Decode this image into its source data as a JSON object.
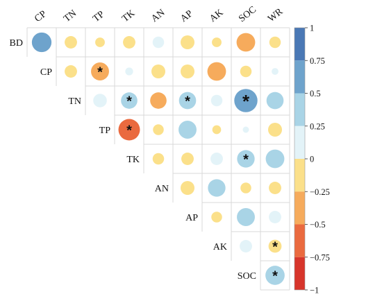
{
  "chart_data": {
    "type": "heatmap",
    "title": "",
    "col_labels": [
      "CP",
      "TN",
      "TP",
      "TK",
      "AN",
      "AP",
      "AK",
      "SOC",
      "WR"
    ],
    "row_labels": [
      "BD",
      "CP",
      "TN",
      "TP",
      "TK",
      "AN",
      "AP",
      "AK",
      "SOC"
    ],
    "cells": [
      {
        "row": "BD",
        "col": "CP",
        "r": 0.5,
        "sig": false
      },
      {
        "row": "BD",
        "col": "TN",
        "r": -0.2,
        "sig": false
      },
      {
        "row": "BD",
        "col": "TP",
        "r": -0.12,
        "sig": false
      },
      {
        "row": "BD",
        "col": "TK",
        "r": -0.2,
        "sig": false
      },
      {
        "row": "BD",
        "col": "AN",
        "r": 0.17,
        "sig": false
      },
      {
        "row": "BD",
        "col": "AP",
        "r": -0.25,
        "sig": false
      },
      {
        "row": "BD",
        "col": "AK",
        "r": -0.12,
        "sig": false
      },
      {
        "row": "BD",
        "col": "SOC",
        "r": -0.45,
        "sig": false
      },
      {
        "row": "BD",
        "col": "WR",
        "r": -0.17,
        "sig": false
      },
      {
        "row": "CP",
        "col": "TN",
        "r": -0.2,
        "sig": false
      },
      {
        "row": "CP",
        "col": "TP",
        "r": -0.42,
        "sig": true
      },
      {
        "row": "CP",
        "col": "TK",
        "r": 0.08,
        "sig": false
      },
      {
        "row": "CP",
        "col": "AN",
        "r": -0.25,
        "sig": false
      },
      {
        "row": "CP",
        "col": "AP",
        "r": -0.25,
        "sig": false
      },
      {
        "row": "CP",
        "col": "AK",
        "r": -0.45,
        "sig": false
      },
      {
        "row": "CP",
        "col": "SOC",
        "r": -0.17,
        "sig": false
      },
      {
        "row": "CP",
        "col": "WR",
        "r": 0.06,
        "sig": false
      },
      {
        "row": "TN",
        "col": "TP",
        "r": 0.24,
        "sig": false
      },
      {
        "row": "TN",
        "col": "TK",
        "r": 0.35,
        "sig": true
      },
      {
        "row": "TN",
        "col": "AN",
        "r": -0.35,
        "sig": false
      },
      {
        "row": "TN",
        "col": "AP",
        "r": 0.38,
        "sig": true
      },
      {
        "row": "TN",
        "col": "AK",
        "r": 0.17,
        "sig": false
      },
      {
        "row": "TN",
        "col": "SOC",
        "r": 0.7,
        "sig": true
      },
      {
        "row": "TN",
        "col": "WR",
        "r": 0.38,
        "sig": false
      },
      {
        "row": "TP",
        "col": "TK",
        "r": -0.6,
        "sig": true
      },
      {
        "row": "TP",
        "col": "AN",
        "r": -0.15,
        "sig": false
      },
      {
        "row": "TP",
        "col": "AP",
        "r": 0.42,
        "sig": false
      },
      {
        "row": "TP",
        "col": "AK",
        "r": -0.1,
        "sig": false
      },
      {
        "row": "TP",
        "col": "SOC",
        "r": 0.05,
        "sig": false
      },
      {
        "row": "TP",
        "col": "WR",
        "r": -0.25,
        "sig": false
      },
      {
        "row": "TK",
        "col": "AN",
        "r": -0.17,
        "sig": false
      },
      {
        "row": "TK",
        "col": "AP",
        "r": -0.2,
        "sig": false
      },
      {
        "row": "TK",
        "col": "AK",
        "r": 0.2,
        "sig": false
      },
      {
        "row": "TK",
        "col": "SOC",
        "r": 0.4,
        "sig": true
      },
      {
        "row": "TK",
        "col": "WR",
        "r": 0.45,
        "sig": false
      },
      {
        "row": "AN",
        "col": "AP",
        "r": -0.25,
        "sig": false
      },
      {
        "row": "AN",
        "col": "AK",
        "r": 0.4,
        "sig": false
      },
      {
        "row": "AN",
        "col": "SOC",
        "r": -0.15,
        "sig": false
      },
      {
        "row": "AN",
        "col": "WR",
        "r": -0.2,
        "sig": false
      },
      {
        "row": "AP",
        "col": "AK",
        "r": -0.15,
        "sig": false
      },
      {
        "row": "AP",
        "col": "SOC",
        "r": 0.42,
        "sig": false
      },
      {
        "row": "AP",
        "col": "WR",
        "r": 0.2,
        "sig": false
      },
      {
        "row": "AK",
        "col": "SOC",
        "r": 0.2,
        "sig": false
      },
      {
        "row": "AK",
        "col": "WR",
        "r": -0.22,
        "sig": true
      },
      {
        "row": "SOC",
        "col": "WR",
        "r": 0.48,
        "sig": true
      }
    ],
    "significance_marker": "*",
    "colorbar": {
      "range": [
        -1,
        1
      ],
      "ticks": [
        "1",
        "0.75",
        "0.5",
        "0.25",
        "0",
        "−0.25",
        "−0.5",
        "−0.75",
        "−1"
      ],
      "bins": [
        {
          "from": 0.75,
          "to": 1.0,
          "color": "#4a78b5"
        },
        {
          "from": 0.5,
          "to": 0.75,
          "color": "#6ea3cc"
        },
        {
          "from": 0.25,
          "to": 0.5,
          "color": "#a9d4e6"
        },
        {
          "from": 0.0,
          "to": 0.25,
          "color": "#e3f3f8"
        },
        {
          "from": -0.25,
          "to": 0.0,
          "color": "#fbe08a"
        },
        {
          "from": -0.5,
          "to": -0.25,
          "color": "#f6ab5c"
        },
        {
          "from": -0.75,
          "to": -0.5,
          "color": "#ea6a3f"
        },
        {
          "from": -1.0,
          "to": -0.75,
          "color": "#d7352b"
        }
      ]
    },
    "grid": true,
    "legend": "right"
  }
}
